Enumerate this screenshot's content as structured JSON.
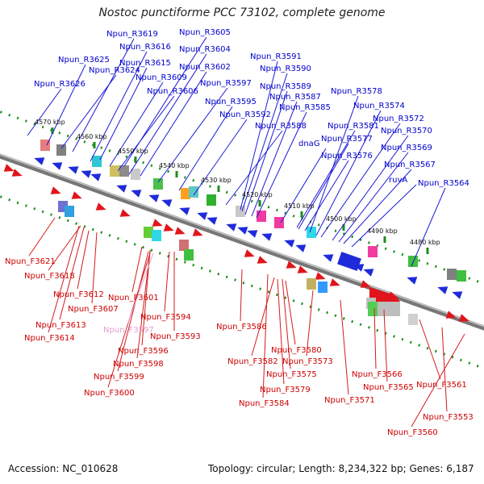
{
  "title": "Nostoc punctiforme PCC 73102, complete genome",
  "accession": "Accession: NC_010628",
  "summary": "Topology: circular; Length: 8,234,322 bp; Genes: 6,187",
  "colors": {
    "reverse_label": "#0000cc",
    "forward_label": "#cc0000",
    "pseudo_label": "#e3a0cf",
    "reverse_gene": "#1f2bd9",
    "forward_gene": "#e0151b",
    "track": "#777777",
    "tick": "#1d8c1d"
  },
  "kbp_labels": [
    "4570 kbp",
    "4560 kbp",
    "4550 kbp",
    "4540 kbp",
    "4530 kbp",
    "4520 kbp",
    "4510 kbp",
    "4500 kbp",
    "4490 kbp",
    "4480 kbp"
  ],
  "reverse_labels": [
    "Npun_R3619",
    "Npun_R3605",
    "Npun_R3616",
    "Npun_R3604",
    "Npun_R3625",
    "Npun_R3615",
    "Npun_R3624",
    "Npun_R3602",
    "Npun_R3609",
    "Npun_R3626",
    "Npun_R3597",
    "Npun_R3606",
    "Npun_R3591",
    "Npun_R3590",
    "Npun_R3589",
    "Npun_R3595",
    "Npun_R3587",
    "Npun_R3592",
    "Npun_R3585",
    "Npun_R3588",
    "Npun_R3578",
    "Npun_R3574",
    "Npun_R3572",
    "Npun_R3581",
    "Npun_R3570",
    "Npun_R3577",
    "dnaG",
    "Npun_R3569",
    "Npun_R3576",
    "Npun_R3567",
    "ruvA",
    "Npun_R3564"
  ],
  "forward_labels": [
    "Npun_F3621",
    "Npun_F3618",
    "Npun_F3612",
    "Npun_F3607",
    "Npun_F3613",
    "Npun_F3614",
    "Npun_F3601",
    "Npun_F3594",
    "Npun_F3593",
    "Npun_F3596",
    "Npun_F3598",
    "Npun_F3599",
    "Npun_F3600",
    "Npun_F3586",
    "Npun_F3580",
    "Npun_F3582",
    "Npun_F3575",
    "Npun_F3579",
    "Npun_F3584",
    "Npun_F3573",
    "Npun_F3571",
    "Npun_F3566",
    "Npun_F3565",
    "Npun_F3561",
    "Npun_F3553",
    "Npun_F3560"
  ],
  "pseudo_labels": [
    "Npun_F3597"
  ]
}
